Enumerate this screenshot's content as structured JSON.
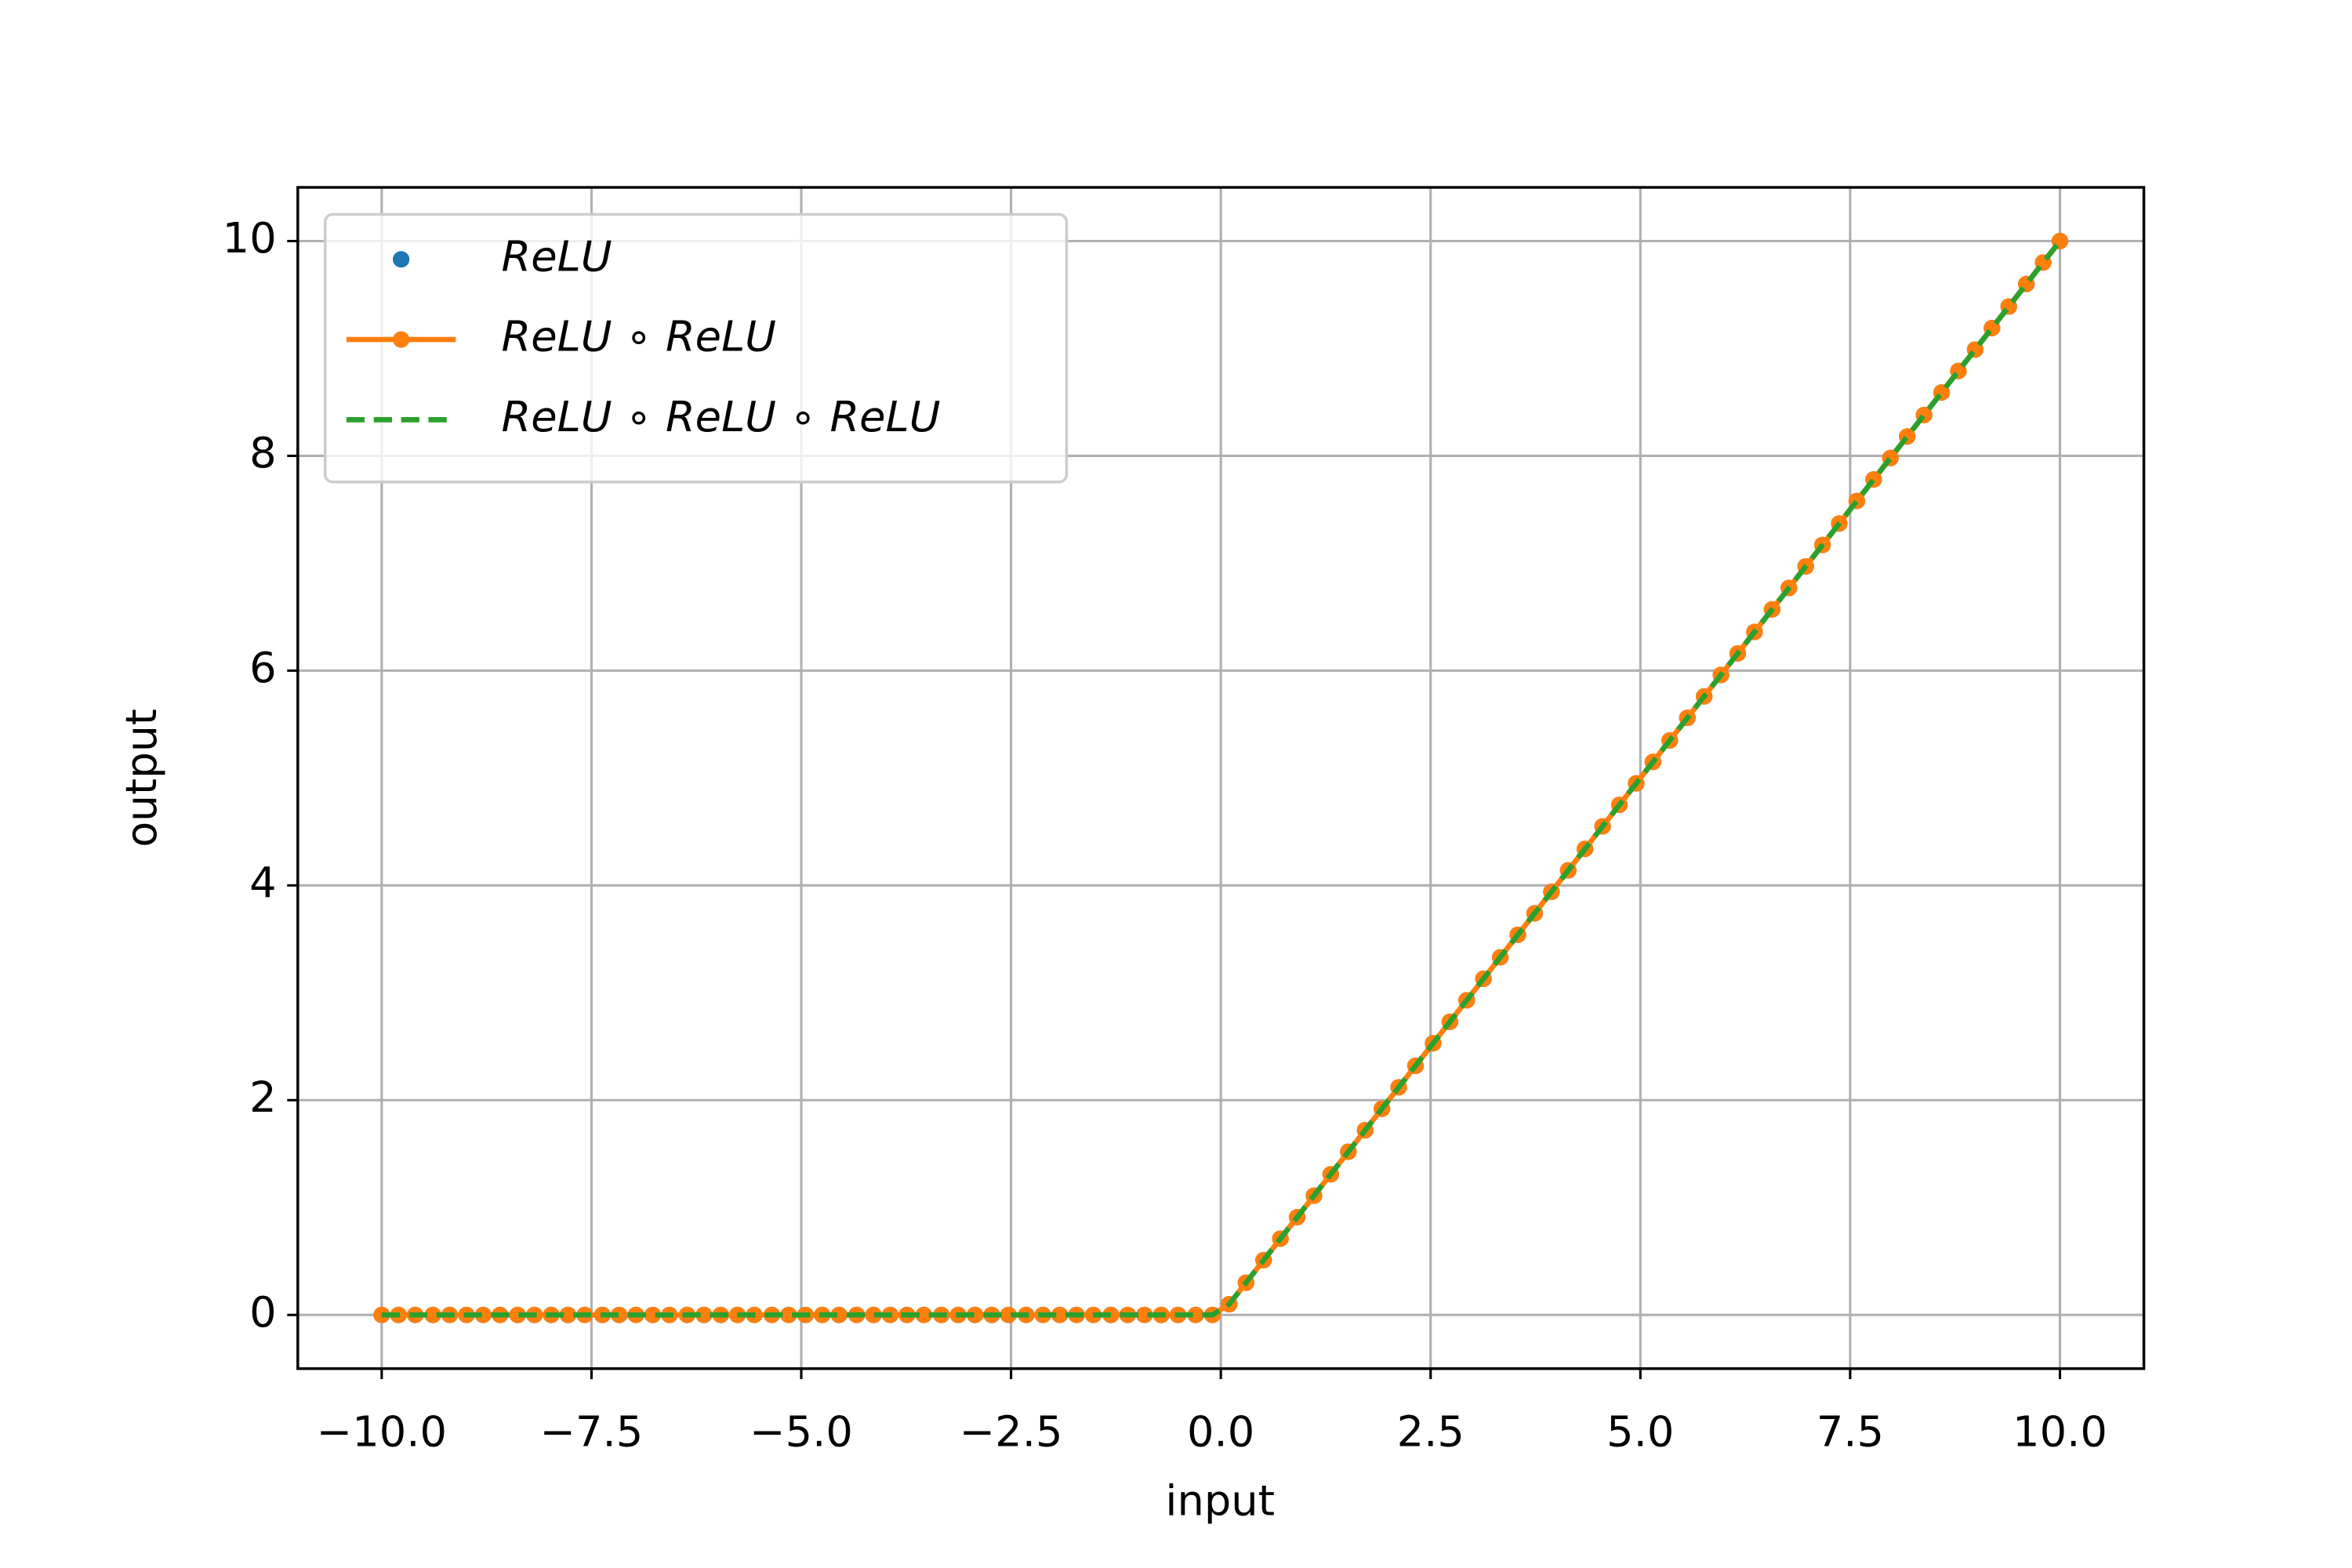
{
  "chart_data": {
    "type": "line",
    "x_label": "input",
    "y_label": "output",
    "x": [
      -10.0,
      -9.8,
      -9.6,
      -9.39,
      -9.19,
      -8.99,
      -8.79,
      -8.59,
      -8.38,
      -8.18,
      -7.98,
      -7.78,
      -7.58,
      -7.37,
      -7.17,
      -6.97,
      -6.77,
      -6.57,
      -6.36,
      -6.16,
      -5.96,
      -5.76,
      -5.56,
      -5.35,
      -5.15,
      -4.95,
      -4.75,
      -4.55,
      -4.34,
      -4.14,
      -3.94,
      -3.74,
      -3.54,
      -3.33,
      -3.13,
      -2.93,
      -2.73,
      -2.53,
      -2.32,
      -2.12,
      -1.92,
      -1.72,
      -1.52,
      -1.31,
      -1.11,
      -0.91,
      -0.71,
      -0.51,
      -0.3,
      -0.1,
      0.1,
      0.3,
      0.51,
      0.71,
      0.91,
      1.11,
      1.31,
      1.52,
      1.72,
      1.92,
      2.12,
      2.32,
      2.53,
      2.73,
      2.93,
      3.13,
      3.33,
      3.54,
      3.74,
      3.94,
      4.14,
      4.34,
      4.55,
      4.75,
      4.95,
      5.15,
      5.35,
      5.56,
      5.76,
      5.96,
      6.16,
      6.36,
      6.57,
      6.77,
      6.97,
      7.17,
      7.37,
      7.58,
      7.78,
      7.98,
      8.18,
      8.38,
      8.59,
      8.79,
      8.99,
      9.19,
      9.39,
      9.6,
      9.8,
      10.0
    ],
    "series": [
      {
        "name": "ReLU",
        "color": "#1f77b4",
        "linestyle": "none",
        "marker": true,
        "values": [
          0,
          0,
          0,
          0,
          0,
          0,
          0,
          0,
          0,
          0,
          0,
          0,
          0,
          0,
          0,
          0,
          0,
          0,
          0,
          0,
          0,
          0,
          0,
          0,
          0,
          0,
          0,
          0,
          0,
          0,
          0,
          0,
          0,
          0,
          0,
          0,
          0,
          0,
          0,
          0,
          0,
          0,
          0,
          0,
          0,
          0,
          0,
          0,
          0,
          0,
          0.1,
          0.3,
          0.51,
          0.71,
          0.91,
          1.11,
          1.31,
          1.52,
          1.72,
          1.92,
          2.12,
          2.32,
          2.53,
          2.73,
          2.93,
          3.13,
          3.33,
          3.54,
          3.74,
          3.94,
          4.14,
          4.34,
          4.55,
          4.75,
          4.95,
          5.15,
          5.35,
          5.56,
          5.76,
          5.96,
          6.16,
          6.36,
          6.57,
          6.77,
          6.97,
          7.17,
          7.37,
          7.58,
          7.78,
          7.98,
          8.18,
          8.38,
          8.59,
          8.79,
          8.99,
          9.19,
          9.39,
          9.6,
          9.8,
          10.0
        ]
      },
      {
        "name": "ReLU ∘ ReLU",
        "color": "#ff7f0e",
        "linestyle": "solid",
        "marker": true,
        "values": [
          0,
          0,
          0,
          0,
          0,
          0,
          0,
          0,
          0,
          0,
          0,
          0,
          0,
          0,
          0,
          0,
          0,
          0,
          0,
          0,
          0,
          0,
          0,
          0,
          0,
          0,
          0,
          0,
          0,
          0,
          0,
          0,
          0,
          0,
          0,
          0,
          0,
          0,
          0,
          0,
          0,
          0,
          0,
          0,
          0,
          0,
          0,
          0,
          0,
          0,
          0.1,
          0.3,
          0.51,
          0.71,
          0.91,
          1.11,
          1.31,
          1.52,
          1.72,
          1.92,
          2.12,
          2.32,
          2.53,
          2.73,
          2.93,
          3.13,
          3.33,
          3.54,
          3.74,
          3.94,
          4.14,
          4.34,
          4.55,
          4.75,
          4.95,
          5.15,
          5.35,
          5.56,
          5.76,
          5.96,
          6.16,
          6.36,
          6.57,
          6.77,
          6.97,
          7.17,
          7.37,
          7.58,
          7.78,
          7.98,
          8.18,
          8.38,
          8.59,
          8.79,
          8.99,
          9.19,
          9.39,
          9.6,
          9.8,
          10.0
        ]
      },
      {
        "name": "ReLU ∘ ReLU ∘ ReLU",
        "color": "#2ca02c",
        "linestyle": "dashed",
        "marker": false,
        "values": [
          0,
          0,
          0,
          0,
          0,
          0,
          0,
          0,
          0,
          0,
          0,
          0,
          0,
          0,
          0,
          0,
          0,
          0,
          0,
          0,
          0,
          0,
          0,
          0,
          0,
          0,
          0,
          0,
          0,
          0,
          0,
          0,
          0,
          0,
          0,
          0,
          0,
          0,
          0,
          0,
          0,
          0,
          0,
          0,
          0,
          0,
          0,
          0,
          0,
          0,
          0.1,
          0.3,
          0.51,
          0.71,
          0.91,
          1.11,
          1.31,
          1.52,
          1.72,
          1.92,
          2.12,
          2.32,
          2.53,
          2.73,
          2.93,
          3.13,
          3.33,
          3.54,
          3.74,
          3.94,
          4.14,
          4.34,
          4.55,
          4.75,
          4.95,
          5.15,
          5.35,
          5.56,
          5.76,
          5.96,
          6.16,
          6.36,
          6.57,
          6.77,
          6.97,
          7.17,
          7.37,
          7.58,
          7.78,
          7.98,
          8.18,
          8.38,
          8.59,
          8.79,
          8.99,
          9.19,
          9.39,
          9.6,
          9.8,
          10.0
        ]
      }
    ],
    "xlim": [
      -11,
      11
    ],
    "ylim": [
      -0.5,
      10.5
    ],
    "xticks": [
      {
        "value": -10,
        "label": "−10.0"
      },
      {
        "value": -7.5,
        "label": "−7.5"
      },
      {
        "value": -5,
        "label": "−5.0"
      },
      {
        "value": -2.5,
        "label": "−2.5"
      },
      {
        "value": 0,
        "label": "0.0"
      },
      2.5,
      {
        "value": 5,
        "label": "5.0"
      },
      7.5,
      {
        "value": 10,
        "label": "10.0"
      }
    ],
    "yticks": [
      0,
      2,
      4,
      6,
      8,
      10
    ],
    "grid": true,
    "legend": "upper left"
  }
}
